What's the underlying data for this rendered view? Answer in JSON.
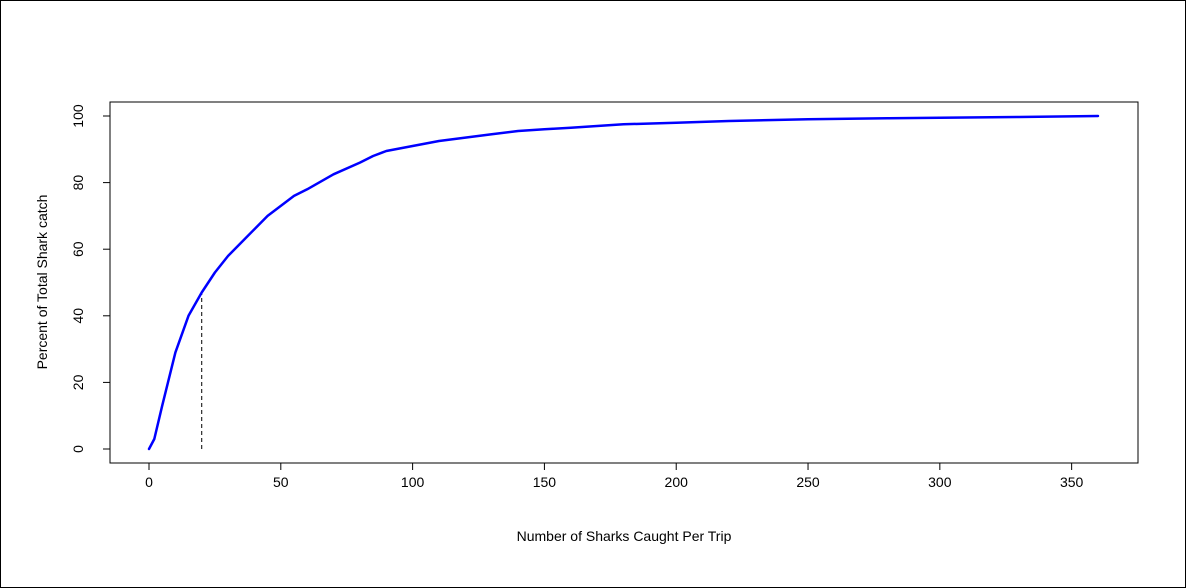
{
  "chart_data": {
    "type": "line",
    "title": "",
    "xlabel": "Number of Sharks Caught Per Trip",
    "ylabel": "Percent of Total Shark catch",
    "xlim": [
      0,
      360
    ],
    "ylim": [
      0,
      100
    ],
    "x_ticks": [
      0,
      50,
      100,
      150,
      200,
      250,
      300,
      350
    ],
    "y_ticks": [
      0,
      20,
      40,
      60,
      80,
      100
    ],
    "grid": false,
    "series": [
      {
        "color": "#0000ff",
        "x": [
          0,
          2,
          5,
          10,
          15,
          20,
          25,
          30,
          35,
          40,
          45,
          50,
          55,
          60,
          70,
          80,
          85,
          90,
          100,
          110,
          120,
          130,
          140,
          150,
          160,
          170,
          180,
          200,
          220,
          250,
          280,
          300,
          330,
          360
        ],
        "y": [
          0,
          3,
          13,
          29,
          40,
          47,
          53,
          58,
          62,
          66,
          70,
          73,
          76,
          78,
          82.5,
          86,
          88,
          89.5,
          91,
          92.5,
          93.5,
          94.5,
          95.5,
          96,
          96.5,
          97,
          97.5,
          98,
          98.5,
          99,
          99.3,
          99.5,
          99.7,
          100
        ]
      }
    ],
    "annotations": [
      {
        "type": "vline",
        "style": "dashed",
        "x": 20,
        "y_from": 0,
        "y_to": 47
      }
    ]
  }
}
